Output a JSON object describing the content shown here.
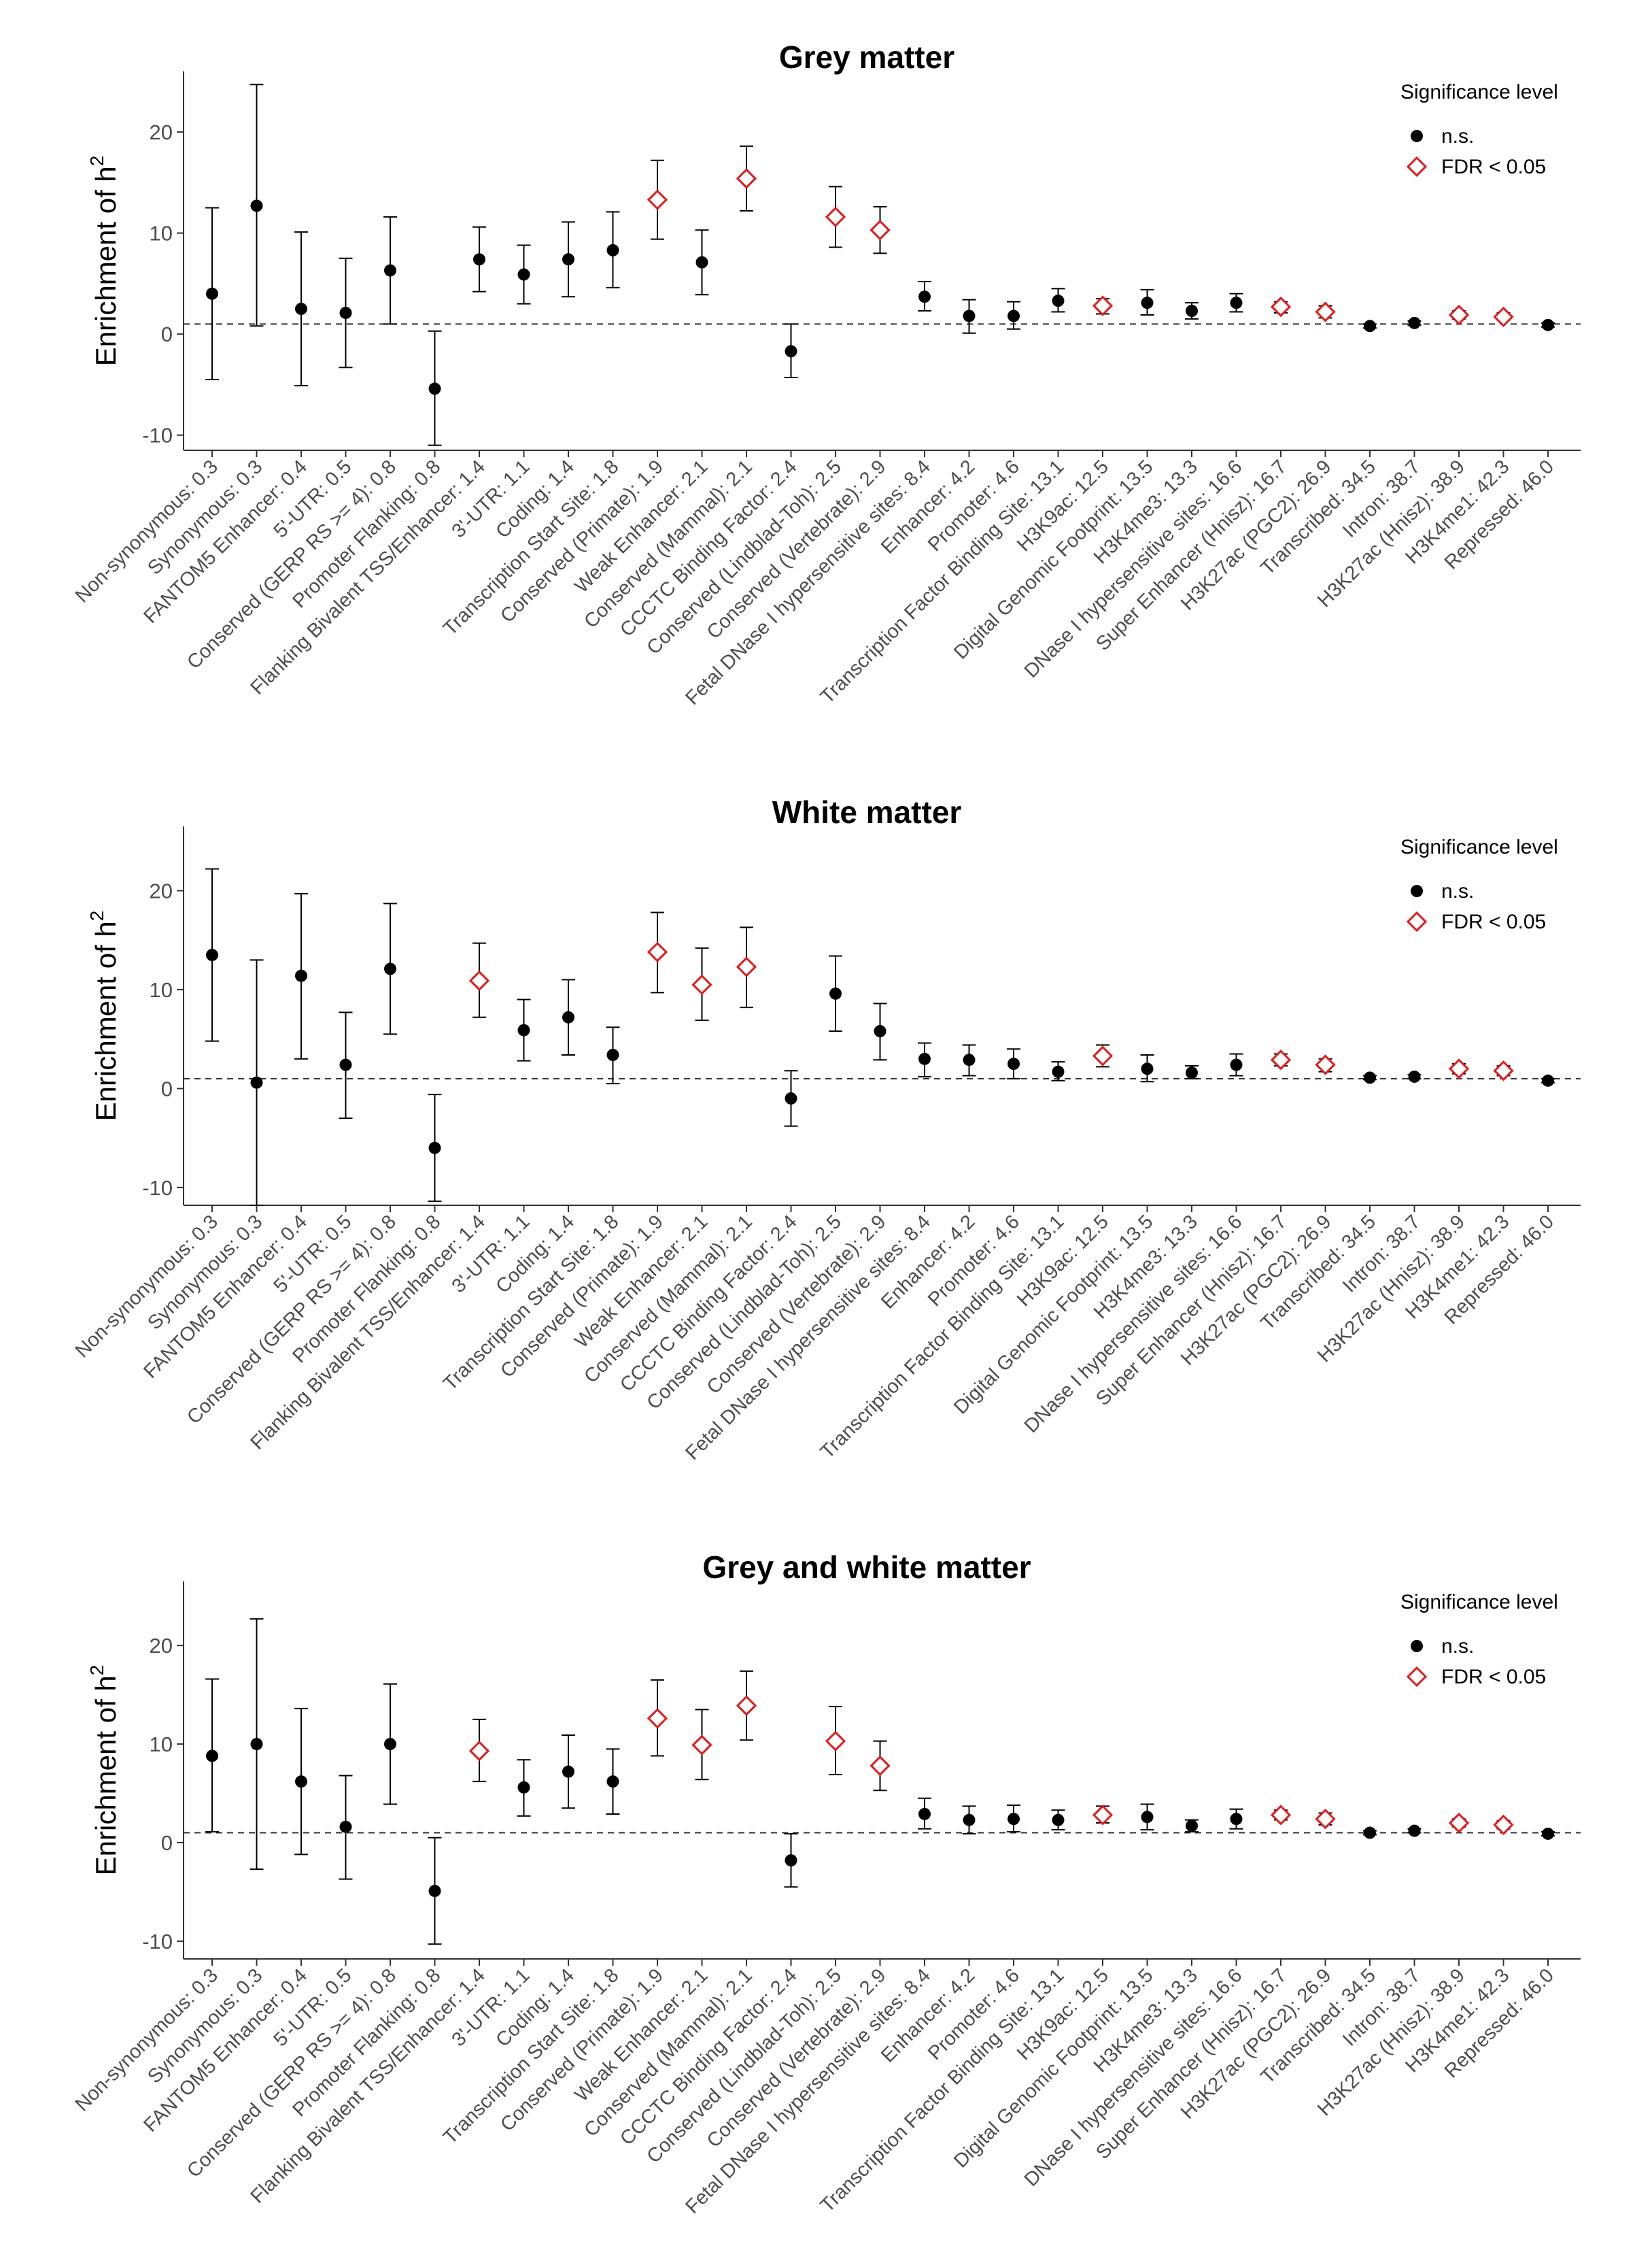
{
  "figure": {
    "categories": [
      "Non-synonymous: 0.3",
      "Synonymous: 0.3",
      "FANTOM5 Enhancer: 0.4",
      "5'-UTR: 0.5",
      "Conserved (GERP RS >= 4): 0.8",
      "Promoter Flanking: 0.8",
      "Flanking Bivalent TSS/Enhancer: 1.4",
      "3'-UTR: 1.1",
      "Coding: 1.4",
      "Transcription Start Site: 1.8",
      "Conserved (Primate): 1.9",
      "Weak Enhancer: 2.1",
      "Conserved (Mammal): 2.1",
      "CCCTC Binding Factor: 2.4",
      "Conserved (Lindblad-Toh): 2.5",
      "Conserved (Vertebrate): 2.9",
      "Fetal DNase I hypersensitive sites: 8.4",
      "Enhancer: 4.2",
      "Promoter: 4.6",
      "Transcription Factor Binding Site: 13.1",
      "H3K9ac: 12.5",
      "Digital Genomic Footprint: 13.5",
      "H3K4me3: 13.3",
      "DNase I hypersensitive sites: 16.6",
      "Super Enhancer (Hnisz): 16.7",
      "H3K27ac (PGC2): 26.9",
      "Transcribed: 34.5",
      "Intron: 38.7",
      "H3K27ac (Hnisz): 38.9",
      "H3K4me1: 42.3",
      "Repressed: 46.0"
    ],
    "y_axis_label": "Enrichment of h",
    "y_axis_label_superscript": "2",
    "legend": {
      "title": "Significance level",
      "entries": [
        {
          "label": "n.s.",
          "marker": "filled-circle",
          "color": "#000000"
        },
        {
          "label": "FDR < 0.05",
          "marker": "open-diamond",
          "color": "#e41a1c"
        }
      ]
    },
    "reference_line": 1,
    "colors": {
      "ns": "#000000",
      "fdr": "#e41a1c",
      "axis": "#333333",
      "tick_text": "#4d4d4d"
    }
  },
  "chart_data": [
    {
      "type": "scatter",
      "title": "Grey matter",
      "ylim": [
        -11.5,
        26
      ],
      "yticks": [
        -10,
        0,
        10,
        20
      ],
      "series": [
        {
          "name": "n.s.",
          "marker": "filled-circle",
          "points": [
            {
              "x": "Non-synonymous: 0.3",
              "y": 4.0,
              "lo": -4.5,
              "hi": 12.5
            },
            {
              "x": "Synonymous: 0.3",
              "y": 12.7,
              "lo": 0.8,
              "hi": 24.7
            },
            {
              "x": "FANTOM5 Enhancer: 0.4",
              "y": 2.5,
              "lo": -5.1,
              "hi": 10.1
            },
            {
              "x": "5'-UTR: 0.5",
              "y": 2.1,
              "lo": -3.3,
              "hi": 7.5
            },
            {
              "x": "Conserved (GERP RS >= 4): 0.8",
              "y": 6.3,
              "lo": 1.0,
              "hi": 11.6
            },
            {
              "x": "Promoter Flanking: 0.8",
              "y": -5.4,
              "lo": -11.0,
              "hi": 0.3
            },
            {
              "x": "3'-UTR: 1.1",
              "y": 5.9,
              "lo": 3.0,
              "hi": 8.8
            },
            {
              "x": "Flanking Bivalent TSS/Enhancer: 1.4",
              "y": 7.4,
              "lo": 4.2,
              "hi": 10.6
            },
            {
              "x": "Coding: 1.4",
              "y": 7.4,
              "lo": 3.7,
              "hi": 11.1
            },
            {
              "x": "Transcription Start Site: 1.8",
              "y": 8.3,
              "lo": 4.6,
              "hi": 12.1
            },
            {
              "x": "Weak Enhancer: 2.1",
              "y": 7.1,
              "lo": 3.9,
              "hi": 10.3
            },
            {
              "x": "CCCTC Binding Factor: 2.4",
              "y": -1.7,
              "lo": -4.3,
              "hi": 1.0
            },
            {
              "x": "Enhancer: 4.2",
              "y": 1.8,
              "lo": 0.1,
              "hi": 3.4
            },
            {
              "x": "Promoter: 4.6",
              "y": 1.8,
              "lo": 0.5,
              "hi": 3.2
            },
            {
              "x": "Fetal DNase I hypersensitive sites: 8.4",
              "y": 3.7,
              "lo": 2.3,
              "hi": 5.2
            },
            {
              "x": "Transcription Factor Binding Site: 13.1",
              "y": 3.3,
              "lo": 2.2,
              "hi": 4.5
            },
            {
              "x": "H3K4me3: 13.3",
              "y": 2.3,
              "lo": 1.5,
              "hi": 3.1
            },
            {
              "x": "Digital Genomic Footprint: 13.5",
              "y": 3.1,
              "lo": 1.9,
              "hi": 4.4
            },
            {
              "x": "DNase I hypersensitive sites: 16.6",
              "y": 3.1,
              "lo": 2.2,
              "hi": 4.0
            },
            {
              "x": "Transcribed: 34.5",
              "y": 0.8,
              "lo": 0.6,
              "hi": 1.0
            },
            {
              "x": "Intron: 38.7",
              "y": 1.1,
              "lo": 0.9,
              "hi": 1.3
            },
            {
              "x": "Repressed: 46.0",
              "y": 0.9,
              "lo": 0.7,
              "hi": 1.1
            }
          ]
        },
        {
          "name": "FDR < 0.05",
          "marker": "open-diamond",
          "points": [
            {
              "x": "Conserved (Primate): 1.9",
              "y": 13.3,
              "lo": 9.4,
              "hi": 17.2
            },
            {
              "x": "Conserved (Mammal): 2.1",
              "y": 15.4,
              "lo": 12.2,
              "hi": 18.6
            },
            {
              "x": "Conserved (Lindblad-Toh): 2.5",
              "y": 11.6,
              "lo": 8.6,
              "hi": 14.6
            },
            {
              "x": "Conserved (Vertebrate): 2.9",
              "y": 10.3,
              "lo": 8.0,
              "hi": 12.6
            },
            {
              "x": "H3K9ac: 12.5",
              "y": 2.8,
              "lo": 2.0,
              "hi": 3.5
            },
            {
              "x": "Super Enhancer (Hnisz): 16.7",
              "y": 2.7,
              "lo": 2.1,
              "hi": 3.2
            },
            {
              "x": "H3K27ac (PGC2): 26.9",
              "y": 2.2,
              "lo": 1.6,
              "hi": 2.8
            },
            {
              "x": "H3K27ac (Hnisz): 38.9",
              "y": 1.9,
              "lo": 1.5,
              "hi": 2.3
            },
            {
              "x": "H3K4me1: 42.3",
              "y": 1.7,
              "lo": 1.4,
              "hi": 2.1
            }
          ]
        }
      ]
    },
    {
      "type": "scatter",
      "title": "White matter",
      "ylim": [
        -11.8,
        26.5
      ],
      "yticks": [
        -10,
        0,
        10,
        20
      ],
      "series": [
        {
          "name": "n.s.",
          "marker": "filled-circle",
          "points": [
            {
              "x": "Non-synonymous: 0.3",
              "y": 13.5,
              "lo": 4.8,
              "hi": 22.2
            },
            {
              "x": "Synonymous: 0.3",
              "y": 0.6,
              "lo": -11.8,
              "hi": 13.0
            },
            {
              "x": "FANTOM5 Enhancer: 0.4",
              "y": 11.4,
              "lo": 3.0,
              "hi": 19.7
            },
            {
              "x": "5'-UTR: 0.5",
              "y": 2.4,
              "lo": -3.0,
              "hi": 7.7
            },
            {
              "x": "Conserved (GERP RS >= 4): 0.8",
              "y": 12.1,
              "lo": 5.5,
              "hi": 18.7
            },
            {
              "x": "Promoter Flanking: 0.8",
              "y": -6.0,
              "lo": -11.4,
              "hi": -0.6
            },
            {
              "x": "3'-UTR: 1.1",
              "y": 5.9,
              "lo": 2.8,
              "hi": 9.0
            },
            {
              "x": "Coding: 1.4",
              "y": 7.2,
              "lo": 3.4,
              "hi": 11.0
            },
            {
              "x": "Transcription Start Site: 1.8",
              "y": 3.4,
              "lo": 0.5,
              "hi": 6.2
            },
            {
              "x": "CCCTC Binding Factor: 2.4",
              "y": -1.0,
              "lo": -3.8,
              "hi": 1.8
            },
            {
              "x": "Conserved (Lindblad-Toh): 2.5",
              "y": 9.6,
              "lo": 5.8,
              "hi": 13.4
            },
            {
              "x": "Conserved (Vertebrate): 2.9",
              "y": 5.8,
              "lo": 2.9,
              "hi": 8.6
            },
            {
              "x": "Enhancer: 4.2",
              "y": 2.9,
              "lo": 1.3,
              "hi": 4.4
            },
            {
              "x": "Promoter: 4.6",
              "y": 2.5,
              "lo": 1.0,
              "hi": 4.0
            },
            {
              "x": "Fetal DNase I hypersensitive sites: 8.4",
              "y": 3.0,
              "lo": 1.2,
              "hi": 4.6
            },
            {
              "x": "Transcription Factor Binding Site: 13.1",
              "y": 1.7,
              "lo": 0.8,
              "hi": 2.7
            },
            {
              "x": "H3K4me3: 13.3",
              "y": 1.6,
              "lo": 1.0,
              "hi": 2.3
            },
            {
              "x": "Digital Genomic Footprint: 13.5",
              "y": 2.0,
              "lo": 0.7,
              "hi": 3.4
            },
            {
              "x": "DNase I hypersensitive sites: 16.6",
              "y": 2.4,
              "lo": 1.3,
              "hi": 3.5
            },
            {
              "x": "Transcribed: 34.5",
              "y": 1.1,
              "lo": 0.9,
              "hi": 1.3
            },
            {
              "x": "Intron: 38.7",
              "y": 1.2,
              "lo": 1.0,
              "hi": 1.4
            },
            {
              "x": "Repressed: 46.0",
              "y": 0.8,
              "lo": 0.6,
              "hi": 1.0
            }
          ]
        },
        {
          "name": "FDR < 0.05",
          "marker": "open-diamond",
          "points": [
            {
              "x": "Flanking Bivalent TSS/Enhancer: 1.4",
              "y": 10.9,
              "lo": 7.2,
              "hi": 14.7
            },
            {
              "x": "Conserved (Primate): 1.9",
              "y": 13.8,
              "lo": 9.7,
              "hi": 17.8
            },
            {
              "x": "Weak Enhancer: 2.1",
              "y": 10.5,
              "lo": 6.9,
              "hi": 14.2
            },
            {
              "x": "Conserved (Mammal): 2.1",
              "y": 12.3,
              "lo": 8.2,
              "hi": 16.3
            },
            {
              "x": "H3K9ac: 12.5",
              "y": 3.3,
              "lo": 2.2,
              "hi": 4.4
            },
            {
              "x": "Super Enhancer (Hnisz): 16.7",
              "y": 2.9,
              "lo": 2.3,
              "hi": 3.5
            },
            {
              "x": "H3K27ac (PGC2): 26.9",
              "y": 2.4,
              "lo": 1.7,
              "hi": 3.0
            },
            {
              "x": "H3K27ac (Hnisz): 38.9",
              "y": 2.0,
              "lo": 1.5,
              "hi": 2.5
            },
            {
              "x": "H3K4me1: 42.3",
              "y": 1.8,
              "lo": 1.3,
              "hi": 2.3
            }
          ]
        }
      ]
    },
    {
      "type": "scatter",
      "title": "Grey and white matter",
      "ylim": [
        -11.8,
        26.5
      ],
      "yticks": [
        -10,
        0,
        10,
        20
      ],
      "series": [
        {
          "name": "n.s.",
          "marker": "filled-circle",
          "points": [
            {
              "x": "Non-synonymous: 0.3",
              "y": 8.8,
              "lo": 1.1,
              "hi": 16.6
            },
            {
              "x": "Synonymous: 0.3",
              "y": 10.0,
              "lo": -2.7,
              "hi": 22.7
            },
            {
              "x": "FANTOM5 Enhancer: 0.4",
              "y": 6.2,
              "lo": -1.2,
              "hi": 13.6
            },
            {
              "x": "5'-UTR: 0.5",
              "y": 1.6,
              "lo": -3.7,
              "hi": 6.8
            },
            {
              "x": "Conserved (GERP RS >= 4): 0.8",
              "y": 10.0,
              "lo": 3.9,
              "hi": 16.1
            },
            {
              "x": "Promoter Flanking: 0.8",
              "y": -4.9,
              "lo": -10.3,
              "hi": 0.5
            },
            {
              "x": "3'-UTR: 1.1",
              "y": 5.6,
              "lo": 2.7,
              "hi": 8.4
            },
            {
              "x": "Coding: 1.4",
              "y": 7.2,
              "lo": 3.5,
              "hi": 10.9
            },
            {
              "x": "Transcription Start Site: 1.8",
              "y": 6.2,
              "lo": 2.9,
              "hi": 9.5
            },
            {
              "x": "CCCTC Binding Factor: 2.4",
              "y": -1.8,
              "lo": -4.5,
              "hi": 0.9
            },
            {
              "x": "Enhancer: 4.2",
              "y": 2.3,
              "lo": 0.9,
              "hi": 3.7
            },
            {
              "x": "Promoter: 4.6",
              "y": 2.4,
              "lo": 1.1,
              "hi": 3.8
            },
            {
              "x": "Fetal DNase I hypersensitive sites: 8.4",
              "y": 2.9,
              "lo": 1.4,
              "hi": 4.5
            },
            {
              "x": "Transcription Factor Binding Site: 13.1",
              "y": 2.3,
              "lo": 1.3,
              "hi": 3.3
            },
            {
              "x": "H3K4me3: 13.3",
              "y": 1.7,
              "lo": 1.1,
              "hi": 2.3
            },
            {
              "x": "Digital Genomic Footprint: 13.5",
              "y": 2.6,
              "lo": 1.3,
              "hi": 3.9
            },
            {
              "x": "DNase I hypersensitive sites: 16.6",
              "y": 2.4,
              "lo": 1.4,
              "hi": 3.4
            },
            {
              "x": "Transcribed: 34.5",
              "y": 1.0,
              "lo": 0.8,
              "hi": 1.2
            },
            {
              "x": "Intron: 38.7",
              "y": 1.2,
              "lo": 1.0,
              "hi": 1.4
            },
            {
              "x": "Repressed: 46.0",
              "y": 0.9,
              "lo": 0.7,
              "hi": 1.1
            }
          ]
        },
        {
          "name": "FDR < 0.05",
          "marker": "open-diamond",
          "points": [
            {
              "x": "Flanking Bivalent TSS/Enhancer: 1.4",
              "y": 9.3,
              "lo": 6.2,
              "hi": 12.5
            },
            {
              "x": "Conserved (Primate): 1.9",
              "y": 12.6,
              "lo": 8.8,
              "hi": 16.5
            },
            {
              "x": "Weak Enhancer: 2.1",
              "y": 9.9,
              "lo": 6.4,
              "hi": 13.5
            },
            {
              "x": "Conserved (Mammal): 2.1",
              "y": 13.9,
              "lo": 10.4,
              "hi": 17.4
            },
            {
              "x": "Conserved (Lindblad-Toh): 2.5",
              "y": 10.3,
              "lo": 6.9,
              "hi": 13.8
            },
            {
              "x": "Conserved (Vertebrate): 2.9",
              "y": 7.8,
              "lo": 5.3,
              "hi": 10.3
            },
            {
              "x": "H3K9ac: 12.5",
              "y": 2.8,
              "lo": 2.0,
              "hi": 3.7
            },
            {
              "x": "Super Enhancer (Hnisz): 16.7",
              "y": 2.8,
              "lo": 2.3,
              "hi": 3.3
            },
            {
              "x": "H3K27ac (PGC2): 26.9",
              "y": 2.4,
              "lo": 1.8,
              "hi": 3.0
            },
            {
              "x": "H3K27ac (Hnisz): 38.9",
              "y": 2.0,
              "lo": 1.6,
              "hi": 2.4
            },
            {
              "x": "H3K4me1: 42.3",
              "y": 1.8,
              "lo": 1.4,
              "hi": 2.2
            }
          ]
        }
      ]
    }
  ]
}
